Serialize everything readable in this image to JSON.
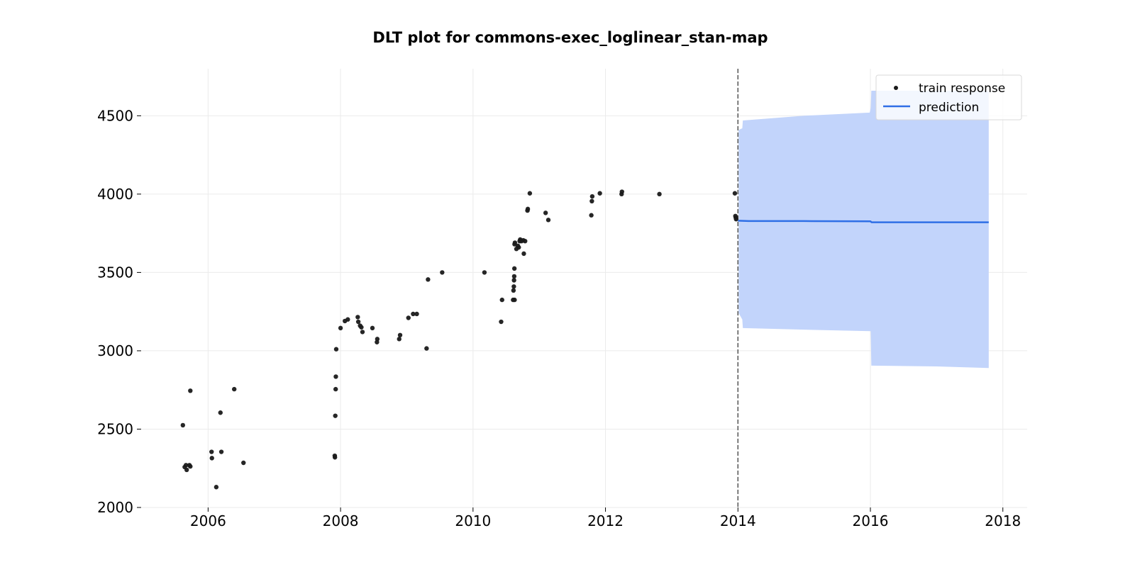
{
  "chart_data": {
    "type": "scatter",
    "title": "DLT plot for commons-exec_loglinear_stan-map",
    "xlabel": "",
    "ylabel": "",
    "xlim": [
      "2005-01-01",
      "2018-05-15"
    ],
    "ylim": [
      2000,
      4800
    ],
    "x_ticks": [
      "2006",
      "2008",
      "2010",
      "2012",
      "2014",
      "2016",
      "2018"
    ],
    "y_ticks": [
      "2000",
      "2500",
      "3000",
      "3500",
      "4000",
      "4500"
    ],
    "grid": true,
    "legend_position": "top-right",
    "train_end": "2014-01-01",
    "colors": {
      "train": "#1a1a1a",
      "prediction": "#2f6fe6",
      "band": "#c2d4fb",
      "train_end_line": "#555555"
    },
    "series": [
      {
        "name": "train response",
        "kind": "scatter",
        "points": [
          [
            "2005-08-15",
            2525
          ],
          [
            "2005-08-25",
            2258
          ],
          [
            "2005-09-01",
            2270
          ],
          [
            "2005-09-05",
            2240
          ],
          [
            "2005-09-20",
            2270
          ],
          [
            "2005-09-25",
            2262
          ],
          [
            "2005-09-25",
            2745
          ],
          [
            "2006-01-20",
            2355
          ],
          [
            "2006-01-22",
            2315
          ],
          [
            "2006-02-15",
            2130
          ],
          [
            "2006-03-10",
            2605
          ],
          [
            "2006-03-15",
            2355
          ],
          [
            "2006-05-25",
            2755
          ],
          [
            "2006-07-15",
            2285
          ],
          [
            "2007-11-30",
            2330
          ],
          [
            "2007-12-01",
            2320
          ],
          [
            "2007-12-03",
            2585
          ],
          [
            "2007-12-05",
            2755
          ],
          [
            "2007-12-06",
            2835
          ],
          [
            "2007-12-08",
            3010
          ],
          [
            "2008-01-01",
            3145
          ],
          [
            "2008-01-25",
            3190
          ],
          [
            "2008-02-10",
            3200
          ],
          [
            "2008-04-05",
            3215
          ],
          [
            "2008-04-08",
            3185
          ],
          [
            "2008-04-18",
            3160
          ],
          [
            "2008-04-25",
            3150
          ],
          [
            "2008-05-01",
            3120
          ],
          [
            "2008-06-25",
            3145
          ],
          [
            "2008-07-20",
            3055
          ],
          [
            "2008-07-22",
            3075
          ],
          [
            "2008-11-20",
            3075
          ],
          [
            "2008-11-25",
            3100
          ],
          [
            "2009-01-10",
            3210
          ],
          [
            "2009-02-05",
            3235
          ],
          [
            "2009-02-25",
            3235
          ],
          [
            "2009-04-20",
            3015
          ],
          [
            "2009-04-28",
            3455
          ],
          [
            "2009-07-15",
            3500
          ],
          [
            "2010-03-05",
            3500
          ],
          [
            "2010-06-05",
            3185
          ],
          [
            "2010-06-10",
            3325
          ],
          [
            "2010-08-10",
            3325
          ],
          [
            "2010-08-12",
            3385
          ],
          [
            "2010-08-14",
            3410
          ],
          [
            "2010-08-15",
            3450
          ],
          [
            "2010-08-16",
            3475
          ],
          [
            "2010-08-17",
            3525
          ],
          [
            "2010-08-18",
            3325
          ],
          [
            "2010-08-18",
            3680
          ],
          [
            "2010-08-20",
            3690
          ],
          [
            "2010-08-28",
            3650
          ],
          [
            "2010-09-05",
            3670
          ],
          [
            "2010-09-10",
            3660
          ],
          [
            "2010-09-15",
            3700
          ],
          [
            "2010-09-18",
            3710
          ],
          [
            "2010-09-25",
            3700
          ],
          [
            "2010-10-05",
            3705
          ],
          [
            "2010-10-08",
            3620
          ],
          [
            "2010-10-15",
            3700
          ],
          [
            "2010-10-28",
            3895
          ],
          [
            "2010-10-30",
            3905
          ],
          [
            "2010-11-10",
            4005
          ],
          [
            "2011-02-05",
            3880
          ],
          [
            "2011-02-20",
            3835
          ],
          [
            "2011-10-15",
            3865
          ],
          [
            "2011-10-18",
            3955
          ],
          [
            "2011-10-20",
            3985
          ],
          [
            "2011-12-01",
            4005
          ],
          [
            "2012-03-30",
            4000
          ],
          [
            "2012-04-01",
            4015
          ],
          [
            "2012-10-25",
            4000
          ],
          [
            "2013-12-15",
            4005
          ],
          [
            "2013-12-18",
            3860
          ],
          [
            "2013-12-20",
            3850
          ],
          [
            "2013-12-22",
            3840
          ]
        ]
      },
      {
        "name": "prediction",
        "kind": "line",
        "points": [
          [
            "2014-01-01",
            3830
          ],
          [
            "2014-03-01",
            3828
          ],
          [
            "2015-01-01",
            3828
          ],
          [
            "2016-01-01",
            3826
          ],
          [
            "2016-01-08",
            3820
          ],
          [
            "2017-01-01",
            3820
          ],
          [
            "2017-10-15",
            3820
          ]
        ]
      },
      {
        "name": "prediction band",
        "kind": "band",
        "upper": [
          [
            "2014-01-05",
            4410
          ],
          [
            "2014-01-25",
            4420
          ],
          [
            "2014-01-28",
            4470
          ],
          [
            "2015-01-01",
            4500
          ],
          [
            "2015-12-28",
            4520
          ],
          [
            "2016-01-03",
            4550
          ],
          [
            "2016-01-06",
            4660
          ],
          [
            "2017-10-15",
            4660
          ]
        ],
        "lower": [
          [
            "2014-01-05",
            3240
          ],
          [
            "2014-01-25",
            3200
          ],
          [
            "2014-01-28",
            3145
          ],
          [
            "2015-01-01",
            3135
          ],
          [
            "2016-01-03",
            3125
          ],
          [
            "2016-01-06",
            2905
          ],
          [
            "2017-01-01",
            2900
          ],
          [
            "2017-10-15",
            2890
          ]
        ]
      }
    ]
  }
}
